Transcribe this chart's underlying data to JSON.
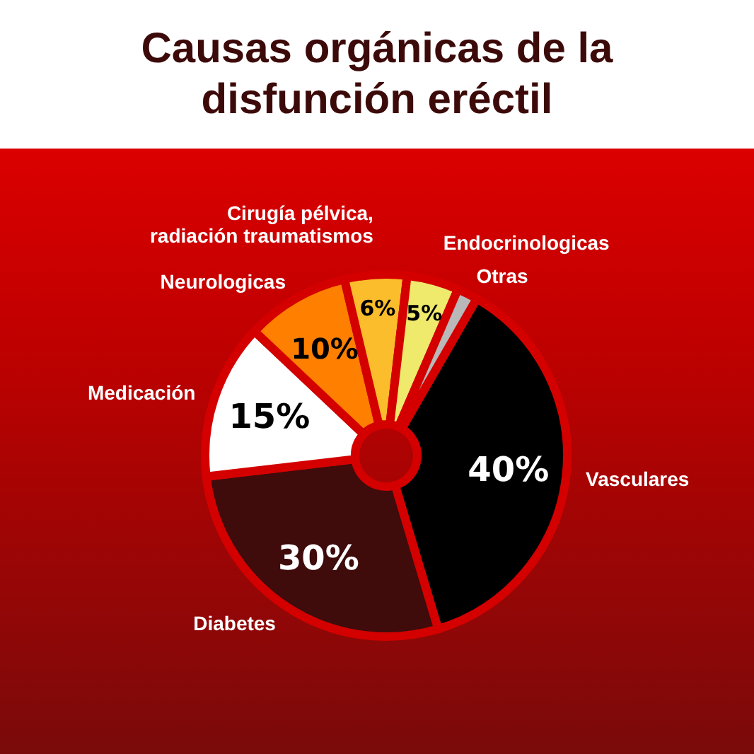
{
  "chart_data": {
    "type": "donut",
    "title": "Causas orgánicas de la disfunción eréctil",
    "categories": [
      "Vasculares",
      "Diabetes",
      "Medicación",
      "Neurologicas",
      "Cirugía pélvica, radiación traumatismos",
      "Endocrinologicas",
      "Otras"
    ],
    "values": [
      40,
      30,
      15,
      10,
      6,
      5,
      2
    ],
    "value_labels": [
      "40%",
      "30%",
      "15%",
      "10%",
      "6%",
      "5%",
      null
    ],
    "colors": [
      "#000000",
      "#3f0b0b",
      "#ffffff",
      "#ff7f00",
      "#fbbd2c",
      "#efe96c",
      "#b9b9b9"
    ],
    "legend": false
  }
}
